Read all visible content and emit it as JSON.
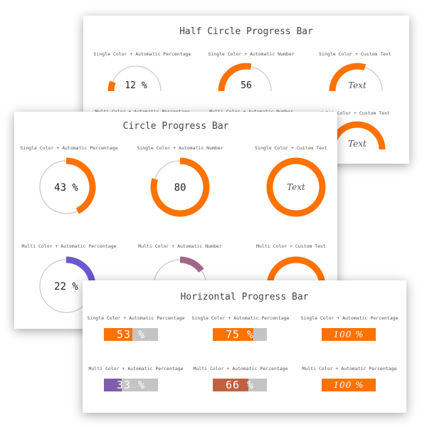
{
  "colors": {
    "primary": "#ff7200",
    "track": "#c8c8c8",
    "purple": "#6a5acd",
    "mauve": "#a26788",
    "violet": "#7e5ea8",
    "rust": "#c0623f"
  },
  "half": {
    "title": "Half Circle Progress Bar",
    "gauges": [
      {
        "caption": "Single Color + Automatic Percentage",
        "percent": 12,
        "label": "12 %",
        "color": "#ff7200",
        "custom": false
      },
      {
        "caption": "Single Color + Automatic Number",
        "percent": 56,
        "label": "56",
        "color": "#ff7200",
        "custom": false
      },
      {
        "caption": "Single Color + Custom Text",
        "percent": 60,
        "label": "Text",
        "color": "#ff7200",
        "custom": true
      },
      {
        "caption": "Multi Color + Automatic Percentage",
        "percent": 0,
        "label": "",
        "color": "#ff7200",
        "custom": false
      },
      {
        "caption": "Multi Color + Automatic Number",
        "percent": 0,
        "label": "",
        "color": "#ff7200",
        "custom": false
      },
      {
        "caption": "Multi Color + Custom Text",
        "percent": 100,
        "label": "Text",
        "color": "#ff7200",
        "custom": true
      }
    ]
  },
  "circle": {
    "title": "Circle Progress Bar",
    "gauges": [
      {
        "caption": "Single Color + Automatic Percentage",
        "percent": 43,
        "label": "43 %",
        "color": "#ff7200",
        "custom": false
      },
      {
        "caption": "Single Color + Automatic Number",
        "percent": 80,
        "label": "80",
        "color": "#ff7200",
        "custom": false
      },
      {
        "caption": "Single Color + Custom Text",
        "percent": 100,
        "label": "Text",
        "color": "#ff7200",
        "custom": true
      },
      {
        "caption": "Multi Color + Automatic Percentage",
        "percent": 22,
        "label": "22 %",
        "color": "#6a5acd",
        "custom": false
      },
      {
        "caption": "Multi Color + Automatic Number",
        "percent": 15,
        "label": "",
        "color": "#a26788",
        "custom": false
      },
      {
        "caption": "Multi Color + Custom Text",
        "percent": 100,
        "label": "",
        "color": "#ff7200",
        "custom": false
      }
    ]
  },
  "horizontal": {
    "title": "Horizontal Progress Bar",
    "bars": [
      {
        "caption": "Single Color + Automatic Percentage",
        "percent": 53,
        "label": "53 %",
        "color": "#ff7200",
        "custom": false
      },
      {
        "caption": "Single Color + Automatic Percentage",
        "percent": 75,
        "label": "75 %",
        "color": "#ff7200",
        "custom": false
      },
      {
        "caption": "Single Color + Automatic Percentage",
        "percent": 100,
        "label": "100 %",
        "color": "#ff7200",
        "custom": true
      },
      {
        "caption": "Multi Color + Automatic Percentage",
        "percent": 33,
        "label": "33 %",
        "color": "#7e5ea8",
        "custom": false
      },
      {
        "caption": "Multi Color + Automatic Percentage",
        "percent": 66,
        "label": "66 %",
        "color": "#c0623f",
        "custom": false
      },
      {
        "caption": "Multi Color + Automatic Percentage",
        "percent": 100,
        "label": "100 %",
        "color": "#ff7200",
        "custom": true
      }
    ]
  }
}
